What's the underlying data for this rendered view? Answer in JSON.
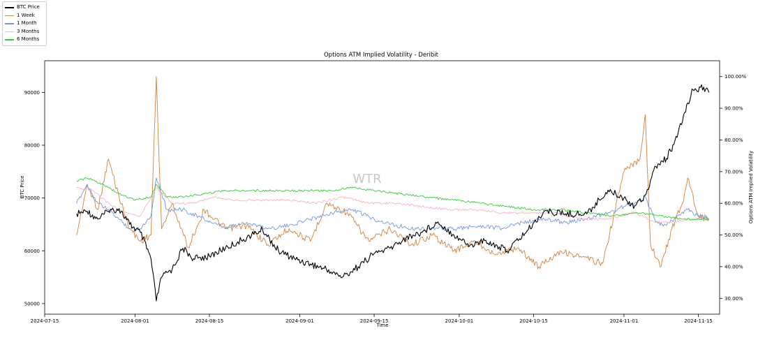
{
  "chart_data": {
    "type": "line",
    "title": "Options ATM Implied Volatility - Deribit",
    "xlabel": "Time",
    "ylabel_left": "BTC Price",
    "ylabel_right": "Options ATM Implied Volatility",
    "watermark": "WTR",
    "x_range": [
      "2024-07-15",
      "2024-11-19"
    ],
    "ylim_left": [
      48000,
      96000
    ],
    "ylim_right": [
      0.25,
      1.05
    ],
    "x_ticks": [
      "2024-07-15",
      "2024-08-01",
      "2024-08-15",
      "2024-09-01",
      "2024-09-15",
      "2024-10-01",
      "2024-10-15",
      "2024-11-01",
      "2024-11-15"
    ],
    "y_left_ticks": [
      "50000",
      "60000",
      "70000",
      "80000",
      "90000"
    ],
    "y_right_ticks": [
      "30.00%",
      "40.00%",
      "50.00%",
      "60.00%",
      "70.00%",
      "80.00%",
      "90.00%",
      "100.00%"
    ],
    "grid": false,
    "legend_position": "top-left",
    "series": [
      {
        "name": "BTC Price",
        "color": "#000000",
        "axis": "left",
        "x": [
          "2024-07-21",
          "2024-07-23",
          "2024-07-25",
          "2024-07-27",
          "2024-07-29",
          "2024-07-31",
          "2024-08-02",
          "2024-08-04",
          "2024-08-05",
          "2024-08-06",
          "2024-08-08",
          "2024-08-10",
          "2024-08-12",
          "2024-08-15",
          "2024-08-18",
          "2024-08-21",
          "2024-08-25",
          "2024-08-28",
          "2024-08-31",
          "2024-09-03",
          "2024-09-06",
          "2024-09-09",
          "2024-09-12",
          "2024-09-15",
          "2024-09-18",
          "2024-09-21",
          "2024-09-24",
          "2024-09-27",
          "2024-09-30",
          "2024-10-03",
          "2024-10-06",
          "2024-10-10",
          "2024-10-14",
          "2024-10-17",
          "2024-10-21",
          "2024-10-25",
          "2024-10-29",
          "2024-11-01",
          "2024-11-03",
          "2024-11-05",
          "2024-11-07",
          "2024-11-09",
          "2024-11-11",
          "2024-11-13",
          "2024-11-14",
          "2024-11-16",
          "2024-11-17"
        ],
        "values": [
          67000,
          67500,
          66000,
          67500,
          68000,
          65000,
          63500,
          58500,
          50500,
          55000,
          56500,
          60500,
          58500,
          59000,
          60500,
          62000,
          64000,
          60000,
          58500,
          57500,
          56500,
          55000,
          57000,
          59500,
          60500,
          62500,
          63500,
          65500,
          63000,
          61000,
          62000,
          60000,
          64000,
          67500,
          67000,
          67000,
          71500,
          70000,
          68500,
          70500,
          76000,
          77500,
          81500,
          88000,
          90500,
          91000,
          90000
        ]
      },
      {
        "name": "1 Week",
        "color": "#d2813a",
        "axis": "right",
        "x": [
          "2024-07-21",
          "2024-07-23",
          "2024-07-25",
          "2024-07-27",
          "2024-07-29",
          "2024-07-31",
          "2024-08-02",
          "2024-08-04",
          "2024-08-05",
          "2024-08-06",
          "2024-08-08",
          "2024-08-11",
          "2024-08-14",
          "2024-08-18",
          "2024-08-22",
          "2024-08-26",
          "2024-08-30",
          "2024-09-03",
          "2024-09-06",
          "2024-09-10",
          "2024-09-14",
          "2024-09-18",
          "2024-09-22",
          "2024-09-26",
          "2024-09-30",
          "2024-10-04",
          "2024-10-08",
          "2024-10-12",
          "2024-10-16",
          "2024-10-20",
          "2024-10-24",
          "2024-10-28",
          "2024-11-01",
          "2024-11-04",
          "2024-11-05",
          "2024-11-06",
          "2024-11-08",
          "2024-11-10",
          "2024-11-12",
          "2024-11-13",
          "2024-11-15",
          "2024-11-17"
        ],
        "values": [
          0.5,
          0.66,
          0.58,
          0.74,
          0.62,
          0.52,
          0.48,
          0.5,
          1.0,
          0.52,
          0.6,
          0.46,
          0.58,
          0.52,
          0.53,
          0.47,
          0.52,
          0.48,
          0.6,
          0.57,
          0.48,
          0.52,
          0.47,
          0.5,
          0.45,
          0.48,
          0.44,
          0.46,
          0.4,
          0.45,
          0.43,
          0.41,
          0.7,
          0.74,
          0.88,
          0.47,
          0.4,
          0.52,
          0.6,
          0.68,
          0.56,
          0.55
        ]
      },
      {
        "name": "1 Month",
        "color": "#6f97e3",
        "axis": "right",
        "x": [
          "2024-07-21",
          "2024-07-23",
          "2024-07-25",
          "2024-07-27",
          "2024-07-29",
          "2024-07-31",
          "2024-08-02",
          "2024-08-04",
          "2024-08-05",
          "2024-08-07",
          "2024-08-10",
          "2024-08-14",
          "2024-08-18",
          "2024-08-22",
          "2024-08-26",
          "2024-08-30",
          "2024-09-03",
          "2024-09-07",
          "2024-09-11",
          "2024-09-15",
          "2024-09-19",
          "2024-09-23",
          "2024-09-27",
          "2024-10-01",
          "2024-10-05",
          "2024-10-09",
          "2024-10-13",
          "2024-10-17",
          "2024-10-21",
          "2024-10-25",
          "2024-10-29",
          "2024-11-01",
          "2024-11-03",
          "2024-11-05",
          "2024-11-07",
          "2024-11-09",
          "2024-11-11",
          "2024-11-13",
          "2024-11-15",
          "2024-11-17"
        ],
        "values": [
          0.6,
          0.66,
          0.6,
          0.58,
          0.55,
          0.52,
          0.52,
          0.56,
          0.68,
          0.58,
          0.58,
          0.55,
          0.52,
          0.54,
          0.52,
          0.53,
          0.55,
          0.57,
          0.58,
          0.55,
          0.53,
          0.52,
          0.52,
          0.52,
          0.53,
          0.52,
          0.54,
          0.55,
          0.54,
          0.55,
          0.57,
          0.59,
          0.6,
          0.62,
          0.54,
          0.53,
          0.56,
          0.58,
          0.56,
          0.55
        ]
      },
      {
        "name": "3 Months",
        "color": "#f7b3c0",
        "axis": "right",
        "x": [
          "2024-07-21",
          "2024-07-24",
          "2024-07-27",
          "2024-07-30",
          "2024-08-02",
          "2024-08-05",
          "2024-08-08",
          "2024-08-12",
          "2024-08-16",
          "2024-08-20",
          "2024-08-25",
          "2024-08-30",
          "2024-09-04",
          "2024-09-09",
          "2024-09-14",
          "2024-09-19",
          "2024-09-24",
          "2024-09-29",
          "2024-10-04",
          "2024-10-09",
          "2024-10-14",
          "2024-10-19",
          "2024-10-24",
          "2024-10-29",
          "2024-11-03",
          "2024-11-07",
          "2024-11-10",
          "2024-11-13",
          "2024-11-17"
        ],
        "values": [
          0.65,
          0.64,
          0.6,
          0.57,
          0.56,
          0.65,
          0.6,
          0.6,
          0.62,
          0.61,
          0.61,
          0.61,
          0.6,
          0.62,
          0.6,
          0.6,
          0.59,
          0.58,
          0.58,
          0.57,
          0.57,
          0.57,
          0.55,
          0.55,
          0.57,
          0.54,
          0.54,
          0.55,
          0.55
        ]
      },
      {
        "name": "6 Months",
        "color": "#33cc33",
        "axis": "right",
        "x": [
          "2024-07-21",
          "2024-07-23",
          "2024-07-26",
          "2024-07-29",
          "2024-08-01",
          "2024-08-04",
          "2024-08-05",
          "2024-08-07",
          "2024-08-10",
          "2024-08-14",
          "2024-08-18",
          "2024-08-22",
          "2024-08-26",
          "2024-08-30",
          "2024-09-03",
          "2024-09-07",
          "2024-09-11",
          "2024-09-15",
          "2024-09-20",
          "2024-09-25",
          "2024-09-30",
          "2024-10-05",
          "2024-10-10",
          "2024-10-15",
          "2024-10-20",
          "2024-10-25",
          "2024-10-30",
          "2024-11-04",
          "2024-11-08",
          "2024-11-12",
          "2024-11-17"
        ],
        "values": [
          0.67,
          0.68,
          0.66,
          0.63,
          0.61,
          0.62,
          0.66,
          0.62,
          0.62,
          0.63,
          0.64,
          0.64,
          0.64,
          0.64,
          0.64,
          0.64,
          0.65,
          0.64,
          0.63,
          0.62,
          0.61,
          0.6,
          0.59,
          0.58,
          0.58,
          0.57,
          0.56,
          0.57,
          0.56,
          0.55,
          0.55
        ]
      }
    ]
  }
}
